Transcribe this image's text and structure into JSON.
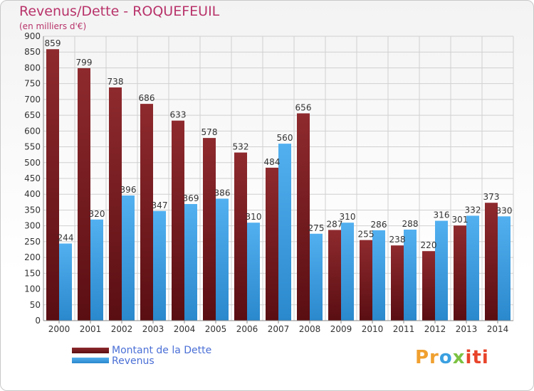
{
  "header": {
    "title": "Revenus/Dette - ROQUEFEUIL",
    "subtitle": "(en milliers d'€)"
  },
  "legend": {
    "items": [
      {
        "label": "Montant de la Dette",
        "color": "#7a1a1e"
      },
      {
        "label": "Revenus",
        "color": "#3d9fe3"
      }
    ]
  },
  "logo": {
    "text": "Proxiti"
  },
  "colors": {
    "dette": "#7a1a1e",
    "revenus": "#3d9fe3",
    "title": "#b8336a",
    "legend_text": "#4a6fd6"
  },
  "chart_data": {
    "type": "bar",
    "title": "Revenus/Dette - ROQUEFEUIL",
    "subtitle": "(en milliers d'€)",
    "categories": [
      "2000",
      "2001",
      "2002",
      "2003",
      "2004",
      "2005",
      "2006",
      "2007",
      "2008",
      "2009",
      "2010",
      "2011",
      "2012",
      "2013",
      "2014"
    ],
    "series": [
      {
        "name": "Montant de la Dette",
        "values": [
          859,
          799,
          738,
          686,
          633,
          578,
          532,
          484,
          656,
          287,
          255,
          238,
          220,
          301,
          373
        ]
      },
      {
        "name": "Revenus",
        "values": [
          244,
          320,
          396,
          347,
          369,
          386,
          310,
          560,
          275,
          310,
          286,
          288,
          316,
          332,
          330
        ]
      }
    ],
    "ylim": [
      0,
      900
    ],
    "yticks": [
      0,
      50,
      100,
      150,
      200,
      250,
      300,
      350,
      400,
      450,
      500,
      550,
      600,
      650,
      700,
      750,
      800,
      850,
      900
    ],
    "grid": true,
    "legend_position": "bottom-left"
  }
}
